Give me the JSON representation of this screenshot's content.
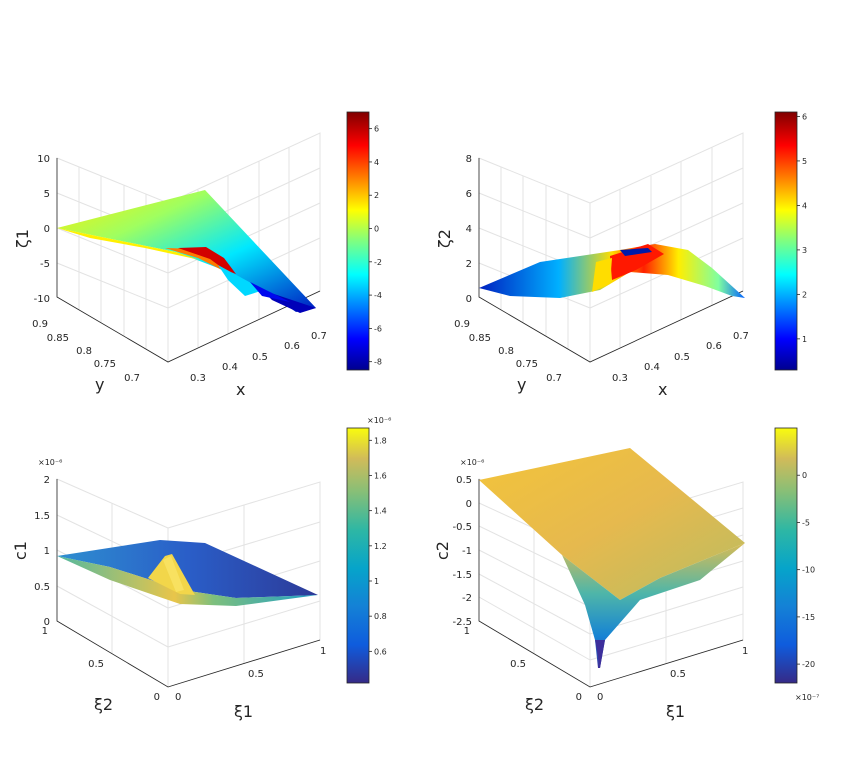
{
  "chart_data": [
    {
      "type": "surface",
      "zlabel": "ζ1",
      "xlabel": "x",
      "ylabel": "y",
      "colormap": "jet",
      "x_ticks": [
        "0.3",
        "0.4",
        "0.5",
        "0.6",
        "0.7"
      ],
      "y_ticks": [
        "0.7",
        "0.75",
        "0.8",
        "0.85",
        "0.9"
      ],
      "z_ticks": [
        "-10",
        "-5",
        "0",
        "5",
        "10"
      ],
      "zlim": [
        -10,
        10
      ],
      "colorbar": {
        "range": [
          -8.5,
          7
        ],
        "ticks": [
          "-8",
          "-6",
          "-4",
          "-2",
          "0",
          "2",
          "4",
          "6"
        ],
        "values": [
          -8,
          -6,
          -4,
          -2,
          0,
          2,
          4,
          6
        ],
        "exponent": ""
      }
    },
    {
      "type": "surface",
      "zlabel": "ζ2",
      "xlabel": "x",
      "ylabel": "y",
      "colormap": "jet",
      "x_ticks": [
        "0.3",
        "0.4",
        "0.5",
        "0.6",
        "0.7"
      ],
      "y_ticks": [
        "0.7",
        "0.75",
        "0.8",
        "0.85",
        "0.9"
      ],
      "z_ticks": [
        "0",
        "2",
        "4",
        "6",
        "8"
      ],
      "zlim": [
        0,
        8
      ],
      "colorbar": {
        "range": [
          0.3,
          6.1
        ],
        "ticks": [
          "1",
          "2",
          "3",
          "4",
          "5",
          "6"
        ],
        "values": [
          1,
          2,
          3,
          4,
          5,
          6
        ],
        "exponent": ""
      }
    },
    {
      "type": "surface",
      "zlabel": "c1",
      "xlabel": "ξ1",
      "ylabel": "ξ2",
      "colormap": "parula",
      "z_exponent": "×10⁻⁶",
      "x_ticks": [
        "0",
        "0.5",
        "1"
      ],
      "y_ticks": [
        "0",
        "0.5",
        "1"
      ],
      "z_ticks": [
        "0",
        "0.5",
        "1",
        "1.5",
        "2"
      ],
      "zlim": [
        0,
        2
      ],
      "colorbar": {
        "range": [
          0.42,
          1.87
        ],
        "ticks": [
          "0.6",
          "0.8",
          "1",
          "1.2",
          "1.4",
          "1.6",
          "1.8"
        ],
        "values": [
          0.6,
          0.8,
          1,
          1.2,
          1.4,
          1.6,
          1.8
        ],
        "exponent": "×10⁻⁶"
      }
    },
    {
      "type": "surface",
      "zlabel": "c2",
      "xlabel": "ξ1",
      "ylabel": "ξ2",
      "colormap": "parula",
      "z_exponent": "×10⁻⁶",
      "x_ticks": [
        "0",
        "0.5",
        "1"
      ],
      "y_ticks": [
        "0",
        "0.5",
        "1"
      ],
      "z_ticks": [
        "-2.5",
        "-2",
        "-1.5",
        "-1",
        "-0.5",
        "0",
        "0.5"
      ],
      "zlim": [
        -2.5,
        0.5
      ],
      "colorbar": {
        "range": [
          -22,
          5
        ],
        "ticks": [
          "-20",
          "-15",
          "-10",
          "-5",
          "0"
        ],
        "values": [
          -20,
          -15,
          -10,
          -5,
          0
        ],
        "exponent": "×10⁻⁷"
      }
    }
  ]
}
